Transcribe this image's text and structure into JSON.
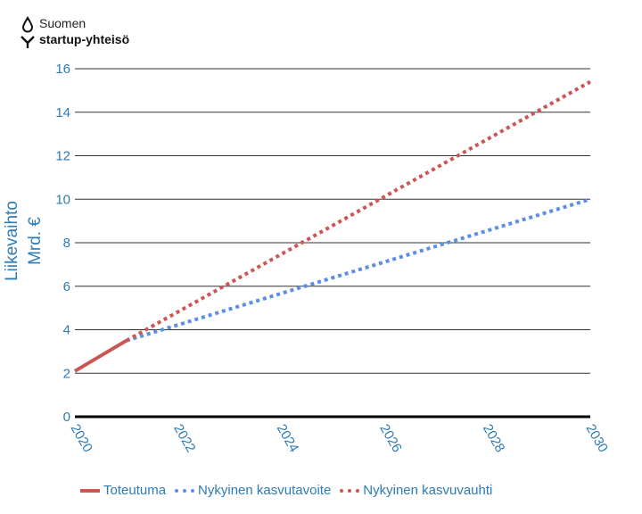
{
  "logo": {
    "line1": "Suomen",
    "line2": "startup-yhteisö",
    "icon": "drop-y-logo-icon"
  },
  "chart_data": {
    "type": "line",
    "ylabel_line1": "Liikevaihto",
    "ylabel_line2": "Mrd. €",
    "xlabel": "",
    "xlim": [
      2020,
      2030
    ],
    "ylim": [
      0,
      16
    ],
    "x_ticks": [
      "2020",
      "2022",
      "2024",
      "2026",
      "2028",
      "2030"
    ],
    "y_ticks": [
      "0",
      "2",
      "4",
      "6",
      "8",
      "10",
      "12",
      "14",
      "16"
    ],
    "grid": true,
    "legend_position": "bottom",
    "series": [
      {
        "name": "Toteutuma",
        "color": "#cc5555",
        "style": "solid",
        "x": [
          2020,
          2021
        ],
        "y": [
          2.1,
          3.5
        ]
      },
      {
        "name": "Nykyinen kasvutavoite",
        "color": "#5b8ee6",
        "style": "dotted",
        "x": [
          2021,
          2030
        ],
        "y": [
          3.5,
          10.0
        ]
      },
      {
        "name": "Nykyinen kasvuvauhti",
        "color": "#cc5555",
        "style": "dotted",
        "x": [
          2021,
          2030
        ],
        "y": [
          3.5,
          15.4
        ]
      }
    ]
  }
}
